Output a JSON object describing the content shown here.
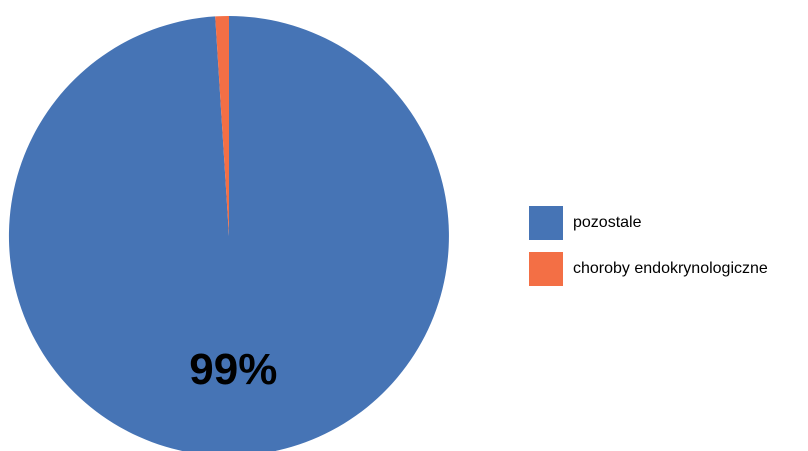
{
  "chart_data": {
    "type": "pie",
    "slices": [
      {
        "label": "pozostale",
        "value": 99,
        "color": "#4674b5",
        "data_label": "99%"
      },
      {
        "label": "choroby endokrynologiczne",
        "value": 1,
        "color": "#f36f45",
        "data_label": ""
      }
    ],
    "legend_position": "right"
  }
}
